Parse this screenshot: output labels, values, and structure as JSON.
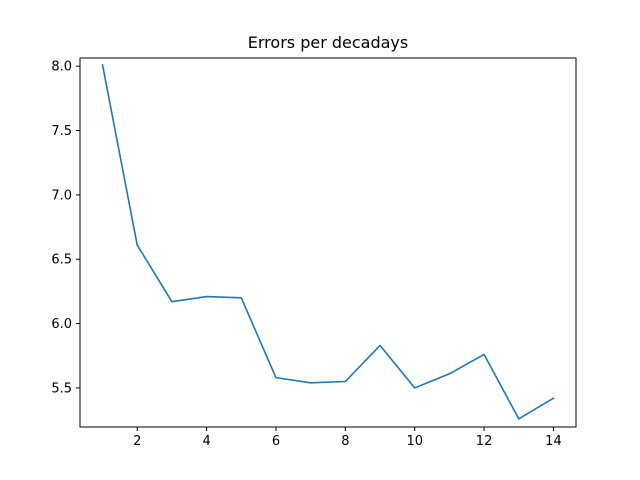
{
  "chart_data": {
    "type": "line",
    "title": "Errors per decadays",
    "xlabel": "",
    "ylabel": "",
    "xlim": [
      0.35,
      14.65
    ],
    "ylim": [
      5.1965,
      8.0635
    ],
    "x_ticks": [
      2,
      4,
      6,
      8,
      10,
      12,
      14
    ],
    "x_tick_labels": [
      "2",
      "4",
      "6",
      "8",
      "10",
      "12",
      "14"
    ],
    "y_ticks": [
      5.5,
      6.0,
      6.5,
      7.0,
      7.5,
      8.0
    ],
    "y_tick_labels": [
      "5.5",
      "6.0",
      "6.5",
      "7.0",
      "7.5",
      "8.0"
    ],
    "grid": false,
    "series": [
      {
        "color": "#1f77b4",
        "x": [
          1,
          2,
          3,
          4,
          5,
          6,
          7,
          8,
          9,
          10,
          11,
          12,
          13,
          14
        ],
        "y": [
          8.01,
          6.61,
          6.17,
          6.21,
          6.2,
          5.58,
          5.54,
          5.55,
          5.83,
          5.5,
          5.61,
          5.76,
          5.26,
          5.42
        ]
      }
    ]
  }
}
